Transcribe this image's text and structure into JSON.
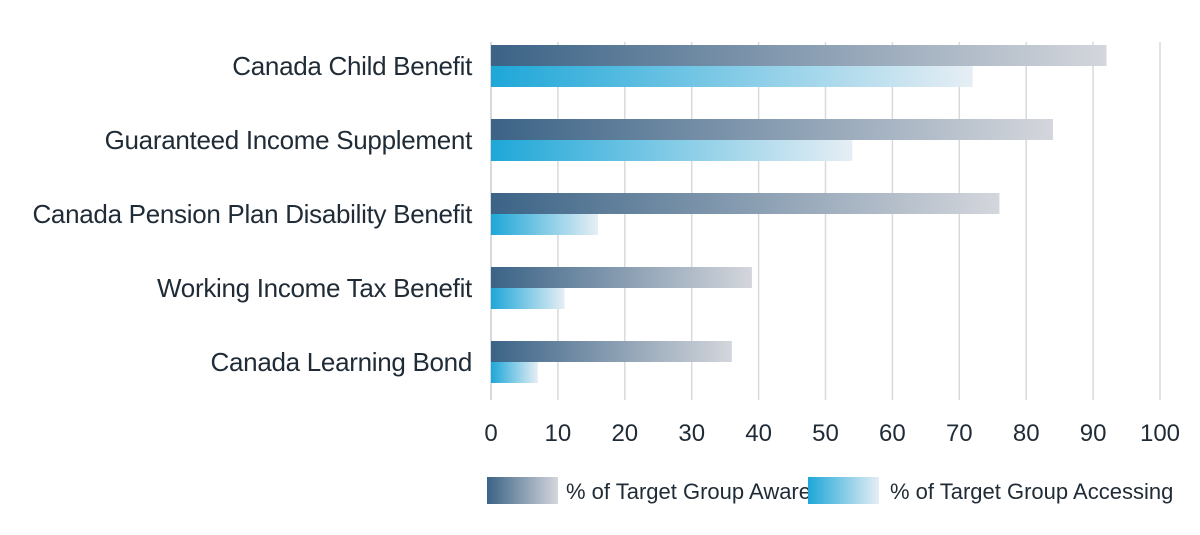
{
  "chart_data": {
    "type": "bar",
    "orientation": "horizontal",
    "categories": [
      "Canada Child Benefit",
      "Guaranteed Income Supplement",
      "Canada Pension Plan Disability Benefit",
      "Working Income Tax Benefit",
      "Canada Learning Bond"
    ],
    "series": [
      {
        "name": "% of Target Group Aware",
        "values": [
          92,
          84,
          76,
          39,
          36
        ],
        "gradient": [
          "#3b6386",
          "#d4d6dc"
        ]
      },
      {
        "name": "% of Target Group Accessing",
        "values": [
          72,
          54,
          16,
          11,
          7
        ],
        "gradient": [
          "#1ea7d8",
          "#e6eef4"
        ]
      }
    ],
    "xlim": [
      0,
      100
    ],
    "xticks": [
      0,
      10,
      20,
      30,
      40,
      50,
      60,
      70,
      80,
      90,
      100
    ],
    "title": "",
    "xlabel": "",
    "ylabel": "",
    "grid": true,
    "legend_position": "bottom"
  }
}
